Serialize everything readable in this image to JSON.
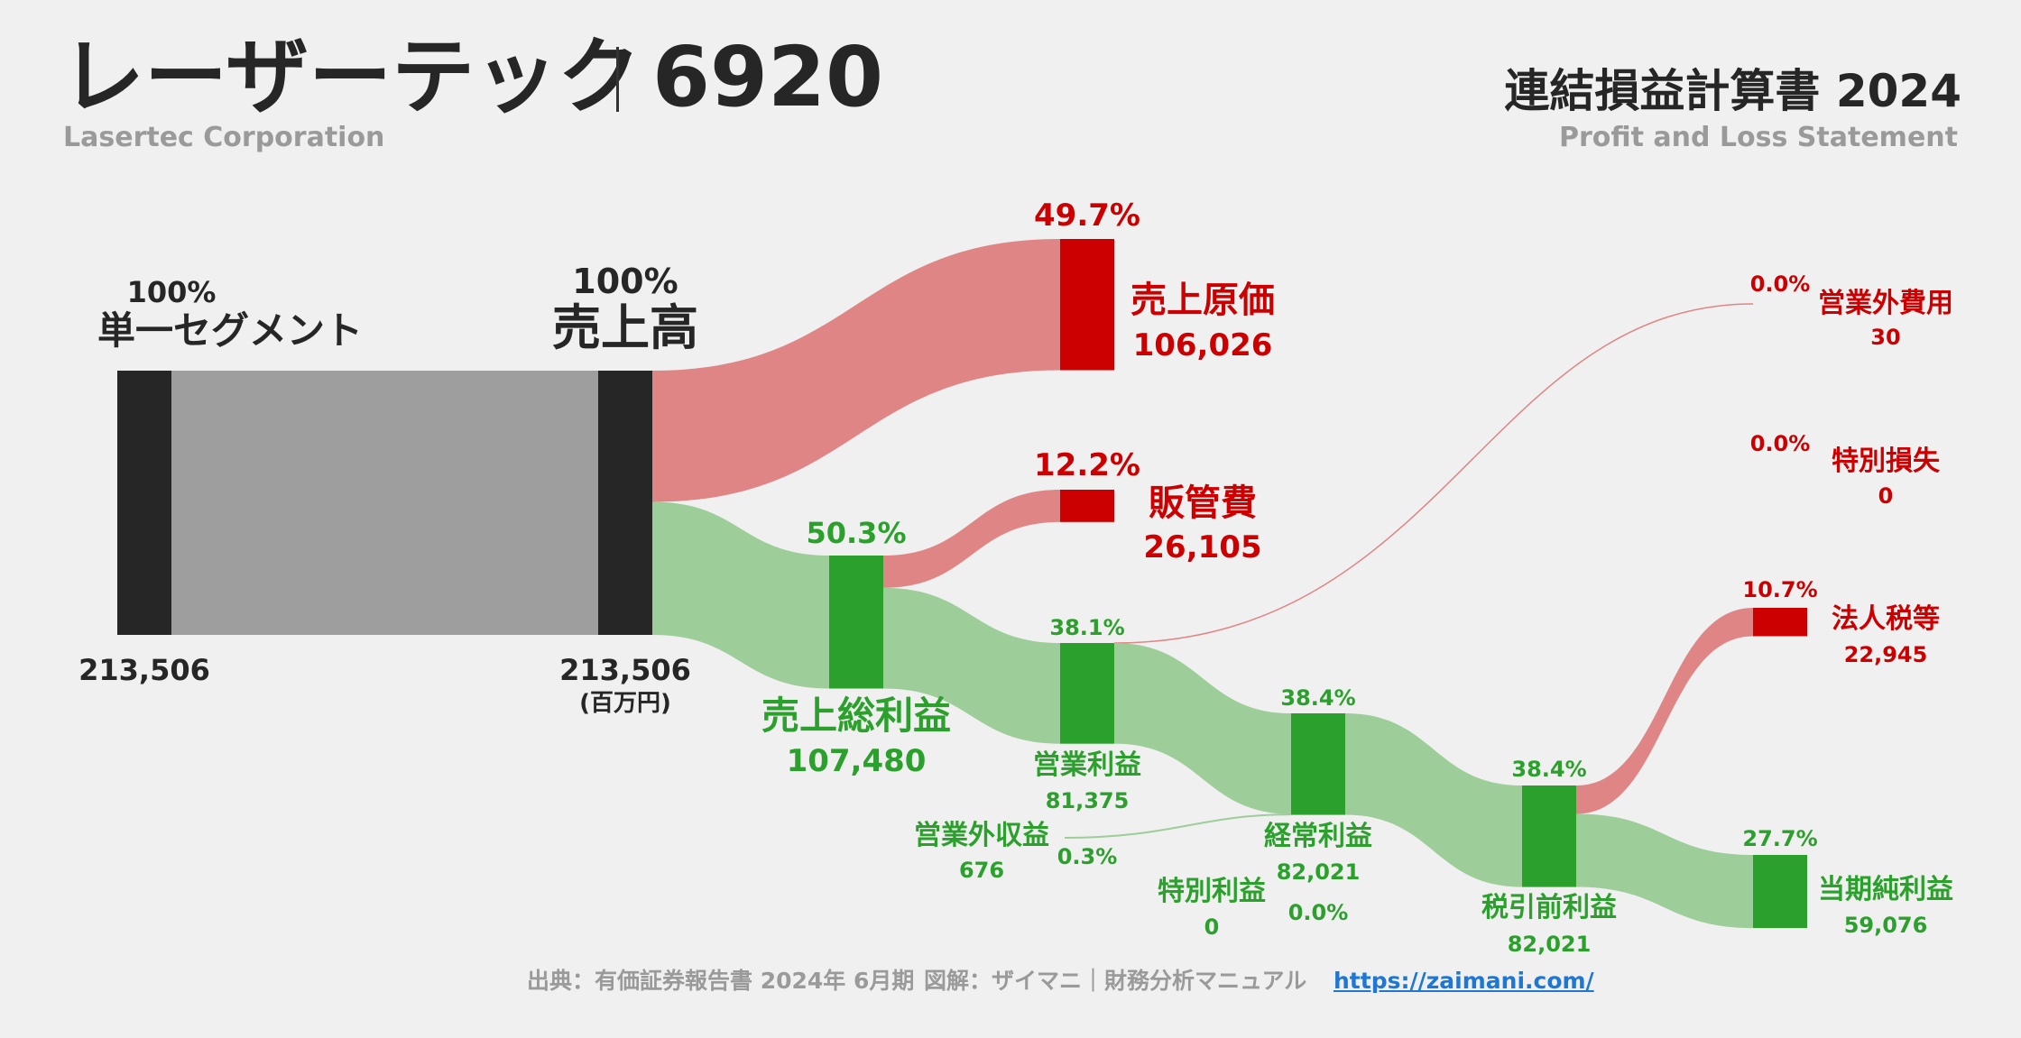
{
  "header": {
    "title": "レーザーテック",
    "code": "6920",
    "subtitle": "Lasertec Corporation",
    "statement_title": "連結損益計算書 2024",
    "statement_subtitle": "Profit and Loss Statement"
  },
  "footer": {
    "source": "出典：有価証券報告書 2024年 6月期",
    "credit": "図解：ザイマニ｜財務分析マニュアル",
    "url": "https://zaimani.com/"
  },
  "unit_note": "(百万円)",
  "colors": {
    "red": "#cc0000",
    "green": "#2ca02c",
    "dark": "#262626",
    "grey": "#9a9a9a",
    "link": "#1f77d4"
  },
  "chart_data": {
    "type": "sankey",
    "unit": "百万円",
    "nodes": [
      {
        "id": "segment",
        "name": "単一セグメント",
        "value": "213,506",
        "pct": "100%"
      },
      {
        "id": "revenue",
        "name": "売上高",
        "value": "213,506",
        "pct": "100%"
      },
      {
        "id": "cogs",
        "name": "売上原価",
        "value": "106,026",
        "pct": "49.7%"
      },
      {
        "id": "sga",
        "name": "販管費",
        "value": "26,105",
        "pct": "12.2%"
      },
      {
        "id": "gross",
        "name": "売上総利益",
        "value": "107,480",
        "pct": "50.3%"
      },
      {
        "id": "op",
        "name": "営業利益",
        "value": "81,375",
        "pct": "38.1%"
      },
      {
        "id": "nonop_inc",
        "name": "営業外収益",
        "value": "676",
        "pct": "0.3%"
      },
      {
        "id": "nonop_exp",
        "name": "営業外費用",
        "value": "30",
        "pct": "0.0%"
      },
      {
        "id": "ord",
        "name": "経常利益",
        "value": "82,021",
        "pct": "38.4%"
      },
      {
        "id": "ext_gain",
        "name": "特別利益",
        "value": "0",
        "pct": "0.0%"
      },
      {
        "id": "ext_loss",
        "name": "特別損失",
        "value": "0",
        "pct": "0.0%"
      },
      {
        "id": "pretax",
        "name": "税引前利益",
        "value": "82,021",
        "pct": "38.4%"
      },
      {
        "id": "tax",
        "name": "法人税等",
        "value": "22,945",
        "pct": "10.7%"
      },
      {
        "id": "net",
        "name": "当期純利益",
        "value": "59,076",
        "pct": "27.7%"
      }
    ],
    "links": [
      {
        "source": "segment",
        "target": "revenue",
        "value": 213506
      },
      {
        "source": "revenue",
        "target": "cogs",
        "value": 106026
      },
      {
        "source": "revenue",
        "target": "gross",
        "value": 107480
      },
      {
        "source": "gross",
        "target": "sga",
        "value": 26105
      },
      {
        "source": "gross",
        "target": "op",
        "value": 81375
      },
      {
        "source": "op",
        "target": "nonop_exp",
        "value": 30
      },
      {
        "source": "op",
        "target": "ord",
        "value": 81345
      },
      {
        "source": "nonop_inc",
        "target": "ord",
        "value": 676
      },
      {
        "source": "ord",
        "target": "pretax",
        "value": 82021
      },
      {
        "source": "pretax",
        "target": "tax",
        "value": 22945
      },
      {
        "source": "pretax",
        "target": "net",
        "value": 59076
      }
    ]
  }
}
